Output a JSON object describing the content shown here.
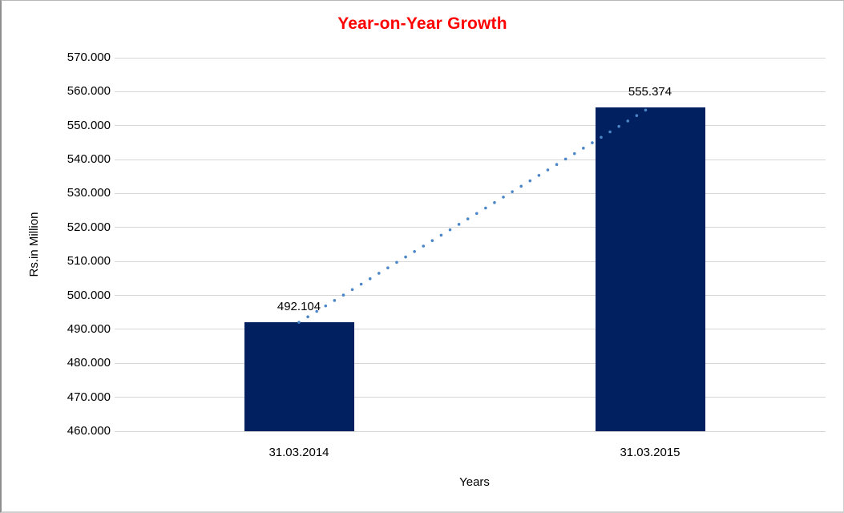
{
  "chart_data": {
    "type": "bar",
    "title": "Year-on-Year Growth",
    "title_color": "#FF0000",
    "categories": [
      "31.03.2014",
      "31.03.2015"
    ],
    "values": [
      492.104,
      555.374
    ],
    "data_labels": [
      "492.104",
      "555.374"
    ],
    "xlabel": "Years",
    "ylabel": "Rs.in Million",
    "ylim": [
      460,
      570
    ],
    "ytick_step": 10,
    "ytick_labels": [
      "460.000",
      "470.000",
      "480.000",
      "490.000",
      "500.000",
      "510.000",
      "520.000",
      "530.000",
      "540.000",
      "550.000",
      "560.000",
      "570.000"
    ],
    "grid": true,
    "grid_color": "#d6d6d6",
    "legend": false,
    "bar_color": "#002060",
    "trendline": {
      "type": "linear",
      "style": "dotted",
      "color": "#4A86C8"
    }
  }
}
